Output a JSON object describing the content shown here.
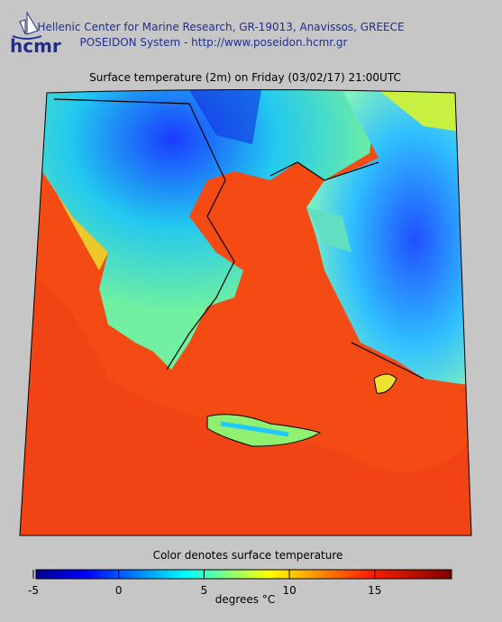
{
  "header": {
    "logo": "hcmr",
    "line1": "Hellenic Center for Marine Research, GR-19013, Anavissos, GREECE",
    "line2": "POSEIDON System - http://www.poseidon.hcmr.gr"
  },
  "map": {
    "title": "Surface temperature (2m) on Friday (03/02/17) 21:00UTC"
  },
  "colorbar": {
    "label": "Color denotes surface temperature",
    "units": "degrees °C",
    "clim": [
      -5,
      19.5
    ],
    "ticks": [
      -5,
      0,
      5,
      10,
      15
    ]
  }
}
